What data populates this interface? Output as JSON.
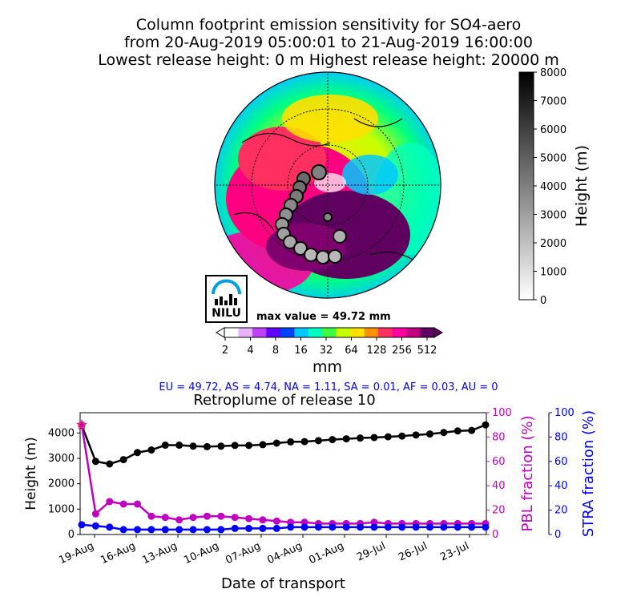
{
  "header": {
    "title_line1": "Column footprint emission sensitivity for SO4-aero",
    "title_line2": "from 20-Aug-2019 05:00:01 to 21-Aug-2019 16:00:00",
    "title_line3": "Lowest release height: 0 m       Highest release height: 20000 m"
  },
  "map": {
    "max_value_text": "max value = 49.72 mm",
    "logo_text": "NILU",
    "colorbar_unit": "mm",
    "colorbar_ticks": [
      "2",
      "4",
      "8",
      "16",
      "32",
      "64",
      "128",
      "256",
      "512"
    ],
    "colorbar_colors": [
      "#ffffff",
      "#e8b0ff",
      "#c040ff",
      "#6000ff",
      "#0040ff",
      "#00c8ff",
      "#00ffc0",
      "#40ff40",
      "#c8ff00",
      "#ffe000",
      "#ff9000",
      "#ff3060",
      "#ff00a0",
      "#c00080",
      "#600060"
    ],
    "height_colorbar_label": "Height (m)",
    "height_colorbar_ticks": [
      "0",
      "1000",
      "2000",
      "3000",
      "4000",
      "5000",
      "6000",
      "7000",
      "8000"
    ]
  },
  "regions_text": "EU = 49.72,  AS = 4.74,  NA = 1.11,  SA = 0.01,  AF = 0.03,  AU = 0",
  "subtitle": "Retroplume of release 10",
  "chart_data": {
    "type": "line",
    "title": "Retroplume of release 10",
    "xlabel": "Date of transport",
    "ylabel": "Height (m)",
    "y2label": "PBL fraction (%)",
    "y3label": "STRA fraction (%)",
    "xticks": [
      "19-Aug",
      "16-Aug",
      "13-Aug",
      "10-Aug",
      "07-Aug",
      "04-Aug",
      "01-Aug",
      "29-Jul",
      "26-Jul",
      "23-Jul"
    ],
    "yticks": [
      "0",
      "1000",
      "2000",
      "3000",
      "4000"
    ],
    "y2ticks": [
      "0",
      "20",
      "40",
      "60",
      "80",
      "100"
    ],
    "y3ticks": [
      "0",
      "20",
      "40",
      "60",
      "80",
      "100"
    ],
    "ylim": [
      0,
      4800
    ],
    "y2lim": [
      0,
      100
    ],
    "y3lim": [
      0,
      100
    ],
    "x_days_before_release": [
      0,
      1,
      2,
      3,
      4,
      5,
      6,
      7,
      8,
      9,
      10,
      11,
      12,
      13,
      14,
      15,
      16,
      17,
      18,
      19,
      20,
      21,
      22,
      23,
      24,
      25,
      26,
      27,
      28,
      29
    ],
    "series": [
      {
        "name": "Height (m)",
        "color": "#000000",
        "axis": "left",
        "values": [
          4300,
          2880,
          2780,
          2950,
          3230,
          3330,
          3520,
          3520,
          3480,
          3460,
          3480,
          3510,
          3510,
          3540,
          3600,
          3650,
          3660,
          3700,
          3740,
          3770,
          3800,
          3820,
          3850,
          3880,
          3920,
          3960,
          4020,
          4080,
          4100,
          4320
        ]
      },
      {
        "name": "PBL fraction (%)",
        "color": "#c000c0",
        "axis": "right",
        "values": [
          90,
          17,
          27,
          25,
          25,
          15,
          14,
          12,
          14,
          15,
          15,
          14,
          13,
          12,
          11,
          10,
          10,
          9,
          9,
          9,
          9,
          10,
          9,
          9,
          9,
          9,
          9,
          9,
          9,
          9
        ]
      },
      {
        "name": "STRA fraction (%)",
        "color": "#0000ff",
        "axis": "right2",
        "values": [
          8,
          7,
          6,
          4,
          4,
          4,
          4,
          4,
          4,
          4,
          4,
          5,
          5,
          5,
          5,
          6,
          6,
          6,
          6,
          6,
          6,
          6,
          6,
          6,
          6,
          6,
          6,
          6,
          6,
          6
        ]
      }
    ]
  }
}
